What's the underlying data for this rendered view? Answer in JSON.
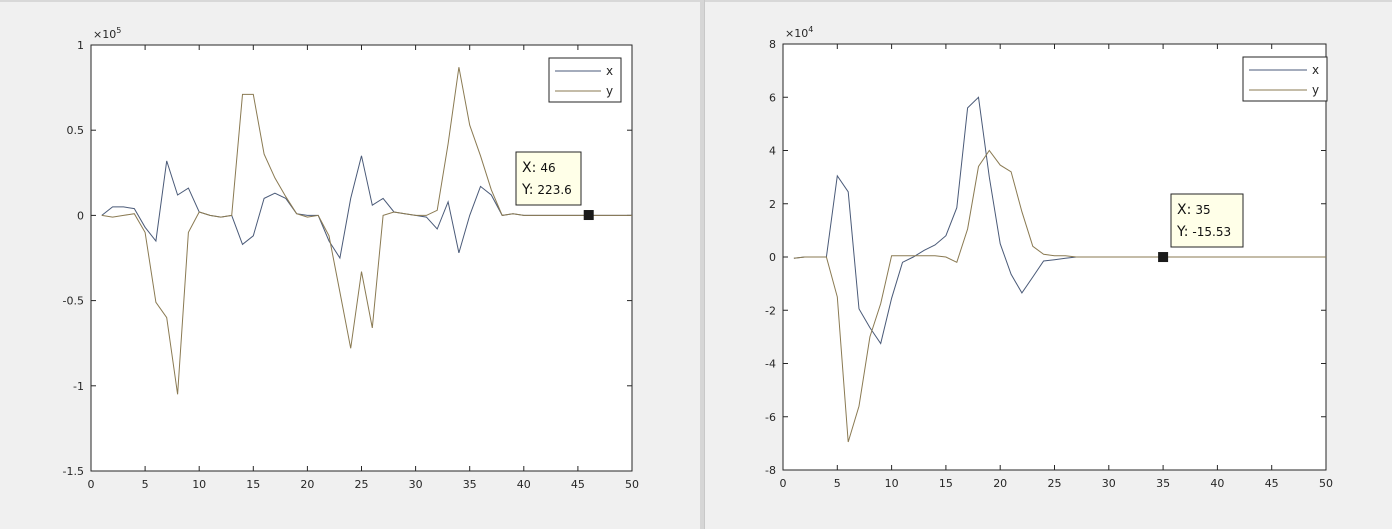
{
  "chart_data": [
    {
      "type": "line",
      "title": "",
      "xlabel": "",
      "ylabel": "",
      "xlim": [
        0,
        50
      ],
      "ylim": [
        -1.5,
        1
      ],
      "y_exponent_label": "×10",
      "y_exponent_power": "5",
      "xticks": [
        "0",
        "5",
        "10",
        "15",
        "20",
        "25",
        "30",
        "35",
        "40",
        "45",
        "50"
      ],
      "yticks": [
        "1",
        "0.5",
        "0",
        "-0.5",
        "-1",
        "-1.5"
      ],
      "legend_position": "top-right",
      "grid": false,
      "series": [
        {
          "name": "x",
          "color": "#4a5a78",
          "x": [
            1,
            2,
            3,
            4,
            5,
            6,
            7,
            8,
            9,
            10,
            11,
            12,
            13,
            14,
            15,
            16,
            17,
            18,
            19,
            20,
            21,
            22,
            23,
            24,
            25,
            26,
            27,
            28,
            29,
            30,
            31,
            32,
            33,
            34,
            35,
            36,
            37,
            38,
            39,
            40,
            41,
            42,
            43,
            44,
            45,
            46,
            47,
            48,
            49,
            50
          ],
          "values": [
            0.0,
            0.05,
            0.05,
            0.04,
            -0.07,
            -0.15,
            0.32,
            0.12,
            0.16,
            0.02,
            0.0,
            -0.01,
            0.0,
            -0.17,
            -0.12,
            0.1,
            0.13,
            0.1,
            0.01,
            0.0,
            0.0,
            -0.15,
            -0.25,
            0.1,
            0.35,
            0.06,
            0.1,
            0.02,
            0.01,
            0.0,
            -0.01,
            -0.08,
            0.08,
            -0.22,
            0.0,
            0.17,
            0.12,
            0.0,
            0.01,
            0.0,
            0.0,
            0.0,
            0.0,
            0.0,
            0.0,
            0.0,
            0.0,
            0.0,
            0.0,
            0.0
          ]
        },
        {
          "name": "y",
          "color": "#8a7a52",
          "x": [
            1,
            2,
            3,
            4,
            5,
            6,
            7,
            8,
            9,
            10,
            11,
            12,
            13,
            14,
            15,
            16,
            17,
            18,
            19,
            20,
            21,
            22,
            23,
            24,
            25,
            26,
            27,
            28,
            29,
            30,
            31,
            32,
            33,
            34,
            35,
            36,
            37,
            38,
            39,
            40,
            41,
            42,
            43,
            44,
            45,
            46,
            47,
            48,
            49,
            50
          ],
          "values": [
            0.0,
            -0.01,
            0.0,
            0.01,
            -0.1,
            -0.51,
            -0.6,
            -1.05,
            -0.1,
            0.02,
            0.0,
            -0.01,
            0.0,
            0.71,
            0.71,
            0.36,
            0.22,
            0.11,
            0.01,
            -0.01,
            0.0,
            -0.12,
            -0.45,
            -0.78,
            -0.33,
            -0.66,
            0.0,
            0.02,
            0.01,
            0.0,
            0.0,
            0.03,
            0.42,
            0.87,
            0.53,
            0.35,
            0.15,
            0.0,
            0.01,
            0.0,
            0.0,
            0.0,
            0.0,
            0.0,
            0.0,
            0.0,
            0.0,
            0.0,
            0.0,
            0.0
          ]
        }
      ],
      "datatip": {
        "x": 46,
        "y_scaled": 0.002236,
        "x_label": "X:",
        "x_value": "46",
        "y_label": "Y:",
        "y_value": "223.6"
      }
    },
    {
      "type": "line",
      "title": "",
      "xlabel": "",
      "ylabel": "",
      "xlim": [
        0,
        50
      ],
      "ylim": [
        -8,
        8
      ],
      "y_exponent_label": "×10",
      "y_exponent_power": "4",
      "xticks": [
        "0",
        "5",
        "10",
        "15",
        "20",
        "25",
        "30",
        "35",
        "40",
        "45",
        "50"
      ],
      "yticks": [
        "8",
        "6",
        "4",
        "2",
        "0",
        "-2",
        "-4",
        "-6",
        "-8"
      ],
      "legend_position": "top-right",
      "grid": false,
      "series": [
        {
          "name": "x",
          "color": "#4a5a78",
          "x": [
            1,
            2,
            3,
            4,
            5,
            6,
            7,
            8,
            9,
            10,
            11,
            12,
            13,
            14,
            15,
            16,
            17,
            18,
            19,
            20,
            21,
            22,
            23,
            24,
            25,
            26,
            27,
            28,
            29,
            30,
            31,
            32,
            33,
            34,
            35,
            36,
            37,
            38,
            39,
            40,
            41,
            42,
            43,
            44,
            45,
            46,
            47,
            48,
            49,
            50
          ],
          "values": [
            -0.05,
            0.0,
            0.0,
            0.0,
            3.05,
            2.45,
            -1.95,
            -2.65,
            -3.25,
            -1.55,
            -0.2,
            0.0,
            0.25,
            0.45,
            0.8,
            1.85,
            5.6,
            6.0,
            3.0,
            0.5,
            -0.65,
            -1.35,
            -0.75,
            -0.15,
            -0.1,
            -0.05,
            0.0,
            0.0,
            0.0,
            0.0,
            0.0,
            0.0,
            0.0,
            0.0,
            0.0,
            0.0,
            0.0,
            0.0,
            0.0,
            0.0,
            0.0,
            0.0,
            0.0,
            0.0,
            0.0,
            0.0,
            0.0,
            0.0,
            0.0,
            0.0
          ]
        },
        {
          "name": "y",
          "color": "#8a7a52",
          "x": [
            1,
            2,
            3,
            4,
            5,
            6,
            7,
            8,
            9,
            10,
            11,
            12,
            13,
            14,
            15,
            16,
            17,
            18,
            19,
            20,
            21,
            22,
            23,
            24,
            25,
            26,
            27,
            28,
            29,
            30,
            31,
            32,
            33,
            34,
            35,
            36,
            37,
            38,
            39,
            40,
            41,
            42,
            43,
            44,
            45,
            46,
            47,
            48,
            49,
            50
          ],
          "values": [
            -0.05,
            0.0,
            0.0,
            0.0,
            -1.5,
            -6.95,
            -5.6,
            -3.0,
            -1.75,
            0.05,
            0.05,
            0.05,
            0.05,
            0.05,
            0.0,
            -0.2,
            1.05,
            3.4,
            4.0,
            3.45,
            3.2,
            1.7,
            0.4,
            0.1,
            0.05,
            0.05,
            0.0,
            0.0,
            0.0,
            0.0,
            0.0,
            0.0,
            0.0,
            0.0,
            0.0,
            0.0,
            0.0,
            0.0,
            0.0,
            0.0,
            0.0,
            0.0,
            0.0,
            0.0,
            0.0,
            0.0,
            0.0,
            0.0,
            0.0,
            0.0
          ]
        }
      ],
      "datatip": {
        "x": 35,
        "y_scaled": -0.001553,
        "x_label": "X:",
        "x_value": "35",
        "y_label": "Y:",
        "y_value": "-15.53"
      }
    }
  ]
}
